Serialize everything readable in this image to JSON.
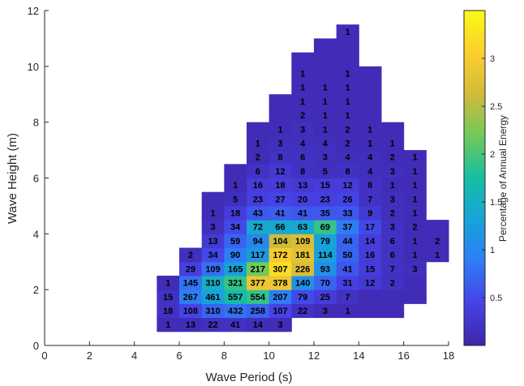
{
  "chart_data": {
    "type": "heatmap",
    "xlabel": "Wave Period (s)",
    "ylabel": "Wave Height (m)",
    "xlim": [
      0,
      18
    ],
    "ylim": [
      0,
      12
    ],
    "xticks": [
      0,
      2,
      4,
      6,
      8,
      10,
      12,
      14,
      16,
      18
    ],
    "yticks": [
      0,
      2,
      4,
      6,
      8,
      10,
      12
    ],
    "bin_width_period": 1,
    "bin_height_height": 0.5,
    "colorbar": {
      "label": "Percentage of Annual Energy",
      "ticks": [
        0.5,
        1,
        1.5,
        2,
        2.5,
        3
      ],
      "range": [
        0,
        3.5
      ],
      "colormap": [
        "#3e26a8",
        "#4741e6",
        "#2e7cf6",
        "#18a3d9",
        "#16bea4",
        "#70c95a",
        "#d1bb3a",
        "#fcce2e",
        "#f9fb15"
      ]
    },
    "cells": [
      {
        "t": 5.5,
        "h": 0.75,
        "e": 0.1,
        "n": "1"
      },
      {
        "t": 6.5,
        "h": 0.75,
        "e": 0.12,
        "n": "13"
      },
      {
        "t": 7.5,
        "h": 0.75,
        "e": 0.15,
        "n": "22"
      },
      {
        "t": 8.5,
        "h": 0.75,
        "e": 0.2,
        "n": "41"
      },
      {
        "t": 9.5,
        "h": 0.75,
        "e": 0.12,
        "n": "14"
      },
      {
        "t": 10.5,
        "h": 0.75,
        "e": 0.1,
        "n": "3"
      },
      {
        "t": 5.5,
        "h": 1.25,
        "e": 0.2,
        "n": "18"
      },
      {
        "t": 6.5,
        "h": 1.25,
        "e": 0.45,
        "n": "108"
      },
      {
        "t": 7.5,
        "h": 1.25,
        "e": 0.7,
        "n": "310"
      },
      {
        "t": 8.5,
        "h": 1.25,
        "e": 0.8,
        "n": "432"
      },
      {
        "t": 9.5,
        "h": 1.25,
        "e": 0.7,
        "n": "258"
      },
      {
        "t": 10.5,
        "h": 1.25,
        "e": 0.45,
        "n": "107"
      },
      {
        "t": 11.5,
        "h": 1.25,
        "e": 0.2,
        "n": "22"
      },
      {
        "t": 12.5,
        "h": 1.25,
        "e": 0.1,
        "n": "3"
      },
      {
        "t": 13.5,
        "h": 1.25,
        "e": 0.1,
        "n": "1"
      },
      {
        "t": 14.5,
        "h": 1.25,
        "e": 0.1,
        "n": ""
      },
      {
        "t": 15.5,
        "h": 1.25,
        "e": 0.1,
        "n": ""
      },
      {
        "t": 5.5,
        "h": 1.75,
        "e": 0.2,
        "n": "15"
      },
      {
        "t": 6.5,
        "h": 1.75,
        "e": 0.9,
        "n": "267"
      },
      {
        "t": 7.5,
        "h": 1.75,
        "e": 1.3,
        "n": "461"
      },
      {
        "t": 8.5,
        "h": 1.75,
        "e": 1.7,
        "n": "557"
      },
      {
        "t": 9.5,
        "h": 1.75,
        "e": 1.9,
        "n": "554"
      },
      {
        "t": 10.5,
        "h": 1.75,
        "e": 0.9,
        "n": "207"
      },
      {
        "t": 11.5,
        "h": 1.75,
        "e": 0.5,
        "n": "79"
      },
      {
        "t": 12.5,
        "h": 1.75,
        "e": 0.35,
        "n": "25"
      },
      {
        "t": 13.5,
        "h": 1.75,
        "e": 0.2,
        "n": "7"
      },
      {
        "t": 14.5,
        "h": 1.75,
        "e": 0.1,
        "n": ""
      },
      {
        "t": 15.5,
        "h": 1.75,
        "e": 0.1,
        "n": ""
      },
      {
        "t": 16.5,
        "h": 1.75,
        "e": 0.1,
        "n": ""
      },
      {
        "t": 5.5,
        "h": 2.25,
        "e": 0.1,
        "n": "1"
      },
      {
        "t": 6.5,
        "h": 2.25,
        "e": 0.8,
        "n": "145"
      },
      {
        "t": 7.5,
        "h": 2.25,
        "e": 1.5,
        "n": "310"
      },
      {
        "t": 8.5,
        "h": 2.25,
        "e": 1.9,
        "n": "321"
      },
      {
        "t": 9.5,
        "h": 2.25,
        "e": 2.9,
        "n": "377"
      },
      {
        "t": 10.5,
        "h": 2.25,
        "e": 2.9,
        "n": "378"
      },
      {
        "t": 11.5,
        "h": 2.25,
        "e": 1.1,
        "n": "140"
      },
      {
        "t": 12.5,
        "h": 2.25,
        "e": 0.7,
        "n": "70"
      },
      {
        "t": 13.5,
        "h": 2.25,
        "e": 0.4,
        "n": "31"
      },
      {
        "t": 14.5,
        "h": 2.25,
        "e": 0.3,
        "n": "12"
      },
      {
        "t": 15.5,
        "h": 2.25,
        "e": 0.2,
        "n": "2"
      },
      {
        "t": 16.5,
        "h": 2.25,
        "e": 0.1,
        "n": ""
      },
      {
        "t": 6.5,
        "h": 2.75,
        "e": 0.4,
        "n": "29"
      },
      {
        "t": 7.5,
        "h": 2.75,
        "e": 0.8,
        "n": "109"
      },
      {
        "t": 8.5,
        "h": 2.75,
        "e": 1.3,
        "n": "165"
      },
      {
        "t": 9.5,
        "h": 2.75,
        "e": 2.2,
        "n": "217"
      },
      {
        "t": 10.5,
        "h": 2.75,
        "e": 3.2,
        "n": "307"
      },
      {
        "t": 11.5,
        "h": 2.75,
        "e": 2.7,
        "n": "226"
      },
      {
        "t": 12.5,
        "h": 2.75,
        "e": 1.1,
        "n": "93"
      },
      {
        "t": 13.5,
        "h": 2.75,
        "e": 0.6,
        "n": "41"
      },
      {
        "t": 14.5,
        "h": 2.75,
        "e": 0.35,
        "n": "15"
      },
      {
        "t": 15.5,
        "h": 2.75,
        "e": 0.2,
        "n": "7"
      },
      {
        "t": 16.5,
        "h": 2.75,
        "e": 0.15,
        "n": "3"
      },
      {
        "t": 6.5,
        "h": 3.25,
        "e": 0.15,
        "n": "2"
      },
      {
        "t": 7.5,
        "h": 3.25,
        "e": 0.5,
        "n": "34"
      },
      {
        "t": 8.5,
        "h": 3.25,
        "e": 0.9,
        "n": "90"
      },
      {
        "t": 9.5,
        "h": 3.25,
        "e": 1.2,
        "n": "117"
      },
      {
        "t": 10.5,
        "h": 3.25,
        "e": 3.0,
        "n": "172"
      },
      {
        "t": 11.5,
        "h": 3.25,
        "e": 2.8,
        "n": "181"
      },
      {
        "t": 12.5,
        "h": 3.25,
        "e": 1.3,
        "n": "114"
      },
      {
        "t": 13.5,
        "h": 3.25,
        "e": 0.7,
        "n": "50"
      },
      {
        "t": 14.5,
        "h": 3.25,
        "e": 0.35,
        "n": "16"
      },
      {
        "t": 15.5,
        "h": 3.25,
        "e": 0.2,
        "n": "6"
      },
      {
        "t": 16.5,
        "h": 3.25,
        "e": 0.1,
        "n": "1"
      },
      {
        "t": 17.5,
        "h": 3.25,
        "e": 0.1,
        "n": "1"
      },
      {
        "t": 7.5,
        "h": 3.75,
        "e": 0.3,
        "n": "13"
      },
      {
        "t": 8.5,
        "h": 3.75,
        "e": 0.7,
        "n": "59"
      },
      {
        "t": 9.5,
        "h": 3.75,
        "e": 1.0,
        "n": "94"
      },
      {
        "t": 10.5,
        "h": 3.75,
        "e": 2.6,
        "n": "104"
      },
      {
        "t": 11.5,
        "h": 3.75,
        "e": 2.7,
        "n": "109"
      },
      {
        "t": 12.5,
        "h": 3.75,
        "e": 1.3,
        "n": "79"
      },
      {
        "t": 13.5,
        "h": 3.75,
        "e": 0.7,
        "n": "44"
      },
      {
        "t": 14.5,
        "h": 3.75,
        "e": 0.35,
        "n": "14"
      },
      {
        "t": 15.5,
        "h": 3.75,
        "e": 0.2,
        "n": "6"
      },
      {
        "t": 16.5,
        "h": 3.75,
        "e": 0.1,
        "n": "1"
      },
      {
        "t": 17.5,
        "h": 3.75,
        "e": 0.1,
        "n": "2"
      },
      {
        "t": 7.5,
        "h": 4.25,
        "e": 0.15,
        "n": "3"
      },
      {
        "t": 8.5,
        "h": 4.25,
        "e": 0.5,
        "n": "34"
      },
      {
        "t": 9.5,
        "h": 4.25,
        "e": 1.4,
        "n": "72"
      },
      {
        "t": 10.5,
        "h": 4.25,
        "e": 1.4,
        "n": "66"
      },
      {
        "t": 11.5,
        "h": 4.25,
        "e": 1.4,
        "n": "63"
      },
      {
        "t": 12.5,
        "h": 4.25,
        "e": 1.9,
        "n": "69"
      },
      {
        "t": 13.5,
        "h": 4.25,
        "e": 0.9,
        "n": "37"
      },
      {
        "t": 14.5,
        "h": 4.25,
        "e": 0.5,
        "n": "17"
      },
      {
        "t": 15.5,
        "h": 4.25,
        "e": 0.2,
        "n": "3"
      },
      {
        "t": 16.5,
        "h": 4.25,
        "e": 0.1,
        "n": "2"
      },
      {
        "t": 17.5,
        "h": 4.25,
        "e": 0.1,
        "n": ""
      },
      {
        "t": 7.5,
        "h": 4.75,
        "e": 0.1,
        "n": "1"
      },
      {
        "t": 8.5,
        "h": 4.75,
        "e": 0.35,
        "n": "18"
      },
      {
        "t": 9.5,
        "h": 4.75,
        "e": 0.6,
        "n": "43"
      },
      {
        "t": 10.5,
        "h": 4.75,
        "e": 0.65,
        "n": "41"
      },
      {
        "t": 11.5,
        "h": 4.75,
        "e": 0.6,
        "n": "41"
      },
      {
        "t": 12.5,
        "h": 4.75,
        "e": 0.6,
        "n": "35"
      },
      {
        "t": 13.5,
        "h": 4.75,
        "e": 0.6,
        "n": "33"
      },
      {
        "t": 14.5,
        "h": 4.75,
        "e": 0.3,
        "n": "9"
      },
      {
        "t": 15.5,
        "h": 4.75,
        "e": 0.15,
        "n": "2"
      },
      {
        "t": 16.5,
        "h": 4.75,
        "e": 0.1,
        "n": "1"
      },
      {
        "t": 7.5,
        "h": 5.25,
        "e": 0.1,
        "n": ""
      },
      {
        "t": 8.5,
        "h": 5.25,
        "e": 0.15,
        "n": "5"
      },
      {
        "t": 9.5,
        "h": 5.25,
        "e": 0.4,
        "n": "23"
      },
      {
        "t": 10.5,
        "h": 5.25,
        "e": 0.45,
        "n": "27"
      },
      {
        "t": 11.5,
        "h": 5.25,
        "e": 0.4,
        "n": "20"
      },
      {
        "t": 12.5,
        "h": 5.25,
        "e": 0.4,
        "n": "23"
      },
      {
        "t": 13.5,
        "h": 5.25,
        "e": 0.45,
        "n": "26"
      },
      {
        "t": 14.5,
        "h": 5.25,
        "e": 0.2,
        "n": "7"
      },
      {
        "t": 15.5,
        "h": 5.25,
        "e": 0.15,
        "n": "3"
      },
      {
        "t": 16.5,
        "h": 5.25,
        "e": 0.1,
        "n": "1"
      },
      {
        "t": 8.5,
        "h": 5.75,
        "e": 0.1,
        "n": "1"
      },
      {
        "t": 9.5,
        "h": 5.75,
        "e": 0.35,
        "n": "16"
      },
      {
        "t": 10.5,
        "h": 5.75,
        "e": 0.35,
        "n": "18"
      },
      {
        "t": 11.5,
        "h": 5.75,
        "e": 0.3,
        "n": "13"
      },
      {
        "t": 12.5,
        "h": 5.75,
        "e": 0.35,
        "n": "15"
      },
      {
        "t": 13.5,
        "h": 5.75,
        "e": 0.35,
        "n": "12"
      },
      {
        "t": 14.5,
        "h": 5.75,
        "e": 0.2,
        "n": "8"
      },
      {
        "t": 15.5,
        "h": 5.75,
        "e": 0.1,
        "n": "1"
      },
      {
        "t": 16.5,
        "h": 5.75,
        "e": 0.1,
        "n": "1"
      },
      {
        "t": 8.5,
        "h": 6.25,
        "e": 0.1,
        "n": ""
      },
      {
        "t": 9.5,
        "h": 6.25,
        "e": 0.2,
        "n": "6"
      },
      {
        "t": 10.5,
        "h": 6.25,
        "e": 0.3,
        "n": "12"
      },
      {
        "t": 11.5,
        "h": 6.25,
        "e": 0.2,
        "n": "8"
      },
      {
        "t": 12.5,
        "h": 6.25,
        "e": 0.15,
        "n": "5"
      },
      {
        "t": 13.5,
        "h": 6.25,
        "e": 0.2,
        "n": "8"
      },
      {
        "t": 14.5,
        "h": 6.25,
        "e": 0.15,
        "n": "4"
      },
      {
        "t": 15.5,
        "h": 6.25,
        "e": 0.15,
        "n": "3"
      },
      {
        "t": 16.5,
        "h": 6.25,
        "e": 0.1,
        "n": "1"
      },
      {
        "t": 9.5,
        "h": 6.75,
        "e": 0.1,
        "n": "2"
      },
      {
        "t": 10.5,
        "h": 6.75,
        "e": 0.2,
        "n": "8"
      },
      {
        "t": 11.5,
        "h": 6.75,
        "e": 0.2,
        "n": "6"
      },
      {
        "t": 12.5,
        "h": 6.75,
        "e": 0.15,
        "n": "3"
      },
      {
        "t": 13.5,
        "h": 6.75,
        "e": 0.15,
        "n": "4"
      },
      {
        "t": 14.5,
        "h": 6.75,
        "e": 0.15,
        "n": "4"
      },
      {
        "t": 15.5,
        "h": 6.75,
        "e": 0.1,
        "n": "2"
      },
      {
        "t": 16.5,
        "h": 6.75,
        "e": 0.1,
        "n": "1"
      },
      {
        "t": 9.5,
        "h": 7.25,
        "e": 0.1,
        "n": "1"
      },
      {
        "t": 10.5,
        "h": 7.25,
        "e": 0.15,
        "n": "3"
      },
      {
        "t": 11.5,
        "h": 7.25,
        "e": 0.15,
        "n": "4"
      },
      {
        "t": 12.5,
        "h": 7.25,
        "e": 0.15,
        "n": "4"
      },
      {
        "t": 13.5,
        "h": 7.25,
        "e": 0.1,
        "n": "2"
      },
      {
        "t": 14.5,
        "h": 7.25,
        "e": 0.1,
        "n": "1"
      },
      {
        "t": 15.5,
        "h": 7.25,
        "e": 0.1,
        "n": "1"
      },
      {
        "t": 9.5,
        "h": 7.75,
        "e": 0.1,
        "n": ""
      },
      {
        "t": 10.5,
        "h": 7.75,
        "e": 0.1,
        "n": "1"
      },
      {
        "t": 11.5,
        "h": 7.75,
        "e": 0.15,
        "n": "3"
      },
      {
        "t": 12.5,
        "h": 7.75,
        "e": 0.1,
        "n": "1"
      },
      {
        "t": 13.5,
        "h": 7.75,
        "e": 0.1,
        "n": "2"
      },
      {
        "t": 14.5,
        "h": 7.75,
        "e": 0.1,
        "n": "1"
      },
      {
        "t": 15.5,
        "h": 7.75,
        "e": 0.1,
        "n": ""
      },
      {
        "t": 10.5,
        "h": 8.25,
        "e": 0.1,
        "n": ""
      },
      {
        "t": 11.5,
        "h": 8.25,
        "e": 0.1,
        "n": "2"
      },
      {
        "t": 12.5,
        "h": 8.25,
        "e": 0.1,
        "n": "1"
      },
      {
        "t": 13.5,
        "h": 8.25,
        "e": 0.1,
        "n": "1"
      },
      {
        "t": 14.5,
        "h": 8.25,
        "e": 0.1,
        "n": ""
      },
      {
        "t": 10.5,
        "h": 8.75,
        "e": 0.1,
        "n": ""
      },
      {
        "t": 11.5,
        "h": 8.75,
        "e": 0.1,
        "n": "1"
      },
      {
        "t": 12.5,
        "h": 8.75,
        "e": 0.1,
        "n": "1"
      },
      {
        "t": 13.5,
        "h": 8.75,
        "e": 0.1,
        "n": "1"
      },
      {
        "t": 14.5,
        "h": 8.75,
        "e": 0.1,
        "n": ""
      },
      {
        "t": 11.5,
        "h": 9.25,
        "e": 0.1,
        "n": "1"
      },
      {
        "t": 12.5,
        "h": 9.25,
        "e": 0.1,
        "n": "1"
      },
      {
        "t": 13.5,
        "h": 9.25,
        "e": 0.1,
        "n": "1"
      },
      {
        "t": 14.5,
        "h": 9.25,
        "e": 0.1,
        "n": ""
      },
      {
        "t": 11.5,
        "h": 9.75,
        "e": 0.1,
        "n": "1"
      },
      {
        "t": 12.5,
        "h": 9.75,
        "e": 0.1,
        "n": ""
      },
      {
        "t": 13.5,
        "h": 9.75,
        "e": 0.1,
        "n": "1"
      },
      {
        "t": 14.5,
        "h": 9.75,
        "e": 0.1,
        "n": ""
      },
      {
        "t": 11.5,
        "h": 10.25,
        "e": 0.1,
        "n": ""
      },
      {
        "t": 12.5,
        "h": 10.25,
        "e": 0.1,
        "n": ""
      },
      {
        "t": 13.5,
        "h": 10.25,
        "e": 0.1,
        "n": ""
      },
      {
        "t": 12.5,
        "h": 10.75,
        "e": 0.1,
        "n": ""
      },
      {
        "t": 13.5,
        "h": 10.75,
        "e": 0.1,
        "n": ""
      },
      {
        "t": 13.5,
        "h": 11.25,
        "e": 0.1,
        "n": "1"
      }
    ]
  }
}
